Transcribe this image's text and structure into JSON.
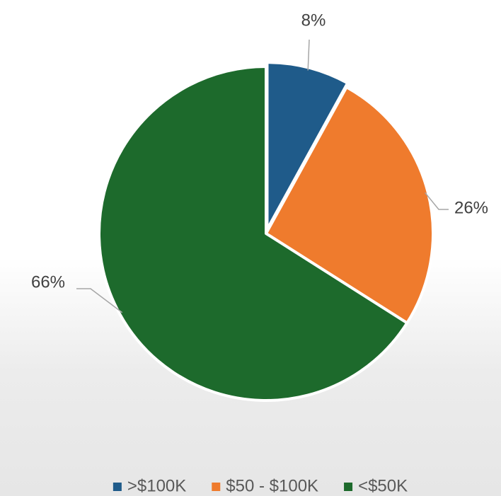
{
  "chart_data": {
    "type": "pie",
    "categories": [
      ">$100K",
      "$50 - $100K",
      "<$50K"
    ],
    "values": [
      8,
      26,
      66
    ],
    "value_labels": [
      "8%",
      "26%",
      "66%"
    ],
    "colors": [
      "#1f5b8a",
      "#ef7b2d",
      "#1d6a2c"
    ],
    "legend": "bottom"
  }
}
